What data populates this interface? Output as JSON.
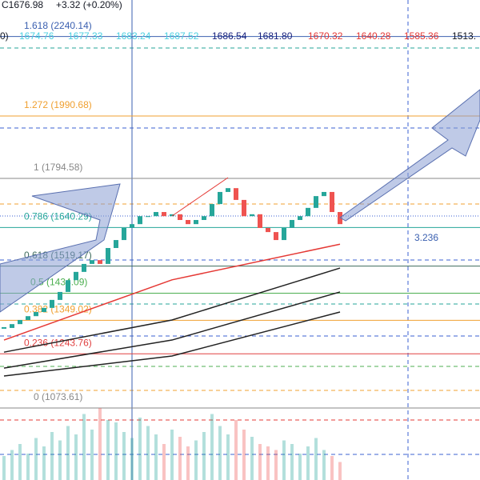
{
  "header": {
    "close": "C1676.98",
    "change": "+3.32 (+0.20%)"
  },
  "ma_values": [
    {
      "text": "0)",
      "color": "#131722"
    },
    {
      "text": "1674.76",
      "color": "#4dd0e1"
    },
    {
      "text": "1677.33",
      "color": "#4dd0e1"
    },
    {
      "text": "1683.24",
      "color": "#4dd0e1"
    },
    {
      "text": "1687.52",
      "color": "#4dd0e1"
    },
    {
      "text": "1686.54",
      "color": "#1a237e"
    },
    {
      "text": "1681.80",
      "color": "#1a237e"
    },
    {
      "text": "1670.32",
      "color": "#e53935"
    },
    {
      "text": "1640.28",
      "color": "#e53935"
    },
    {
      "text": "1585.36",
      "color": "#e53935"
    },
    {
      "text": "1513.",
      "color": "#131722"
    }
  ],
  "extension_label": "3.236",
  "chart_data": [
    {
      "type": "candlestick",
      "categories": [
        null,
        null,
        null,
        null,
        null,
        null,
        null,
        null,
        null,
        null,
        null,
        null,
        null,
        null,
        null,
        null,
        null,
        null,
        null,
        null,
        null,
        null,
        null,
        null,
        null,
        null,
        null,
        null,
        null,
        null,
        null,
        null,
        null,
        null,
        null,
        null,
        null,
        null,
        null,
        null,
        null,
        null,
        null
      ],
      "values": [
        1325,
        1337,
        1350,
        1362,
        1375,
        1388,
        1413,
        1438,
        1475,
        1501,
        1526,
        1538,
        1526,
        1576,
        1601,
        1639,
        1651,
        1676,
        1676,
        1689,
        1676,
        1682,
        1664,
        1651,
        1664,
        1676,
        1714,
        1752,
        1764,
        1727,
        1676,
        1682,
        1639,
        1626,
        1601,
        1639,
        1664,
        1676,
        1702,
        1739,
        1752,
        1689,
        1651
      ],
      "up_color": "#26a69a",
      "down_color": "#ef5350",
      "volume": [
        20,
        25,
        30,
        22,
        35,
        28,
        40,
        33,
        45,
        38,
        55,
        42,
        60,
        50,
        48,
        40,
        35,
        52,
        45,
        38,
        30,
        42,
        36,
        28,
        33,
        40,
        55,
        45,
        38,
        50,
        42,
        36,
        30,
        28,
        25,
        33,
        30,
        22,
        28,
        35,
        25,
        20,
        15
      ],
      "volume_lim": [
        0,
        100
      ],
      "xlim": [
        -0.5,
        59.5
      ],
      "ylim": [
        847.5,
        2354.8
      ],
      "fib_levels": [
        {
          "value": 2240.14,
          "label": "1.618 (2240.14)",
          "color": "#3b60b0"
        },
        {
          "value": 1990.68,
          "label": "1.272 (1990.68)",
          "color": "#f0a030"
        },
        {
          "value": 1794.58,
          "label": "1 (1794.58)",
          "color": "#888888"
        },
        {
          "value": 1640.29,
          "label": "0.786 (1640.29)",
          "color": "#26a69a"
        },
        {
          "value": 1519.17,
          "label": "0.618 (1519.17)",
          "color": "#3d6b5c"
        },
        {
          "value": 1434.09,
          "label": "0.5 (1434.09)",
          "color": "#4caf50"
        },
        {
          "value": 1349.02,
          "label": "0.382 (1349.02)",
          "color": "#f0a030"
        },
        {
          "value": 1243.76,
          "label": "0.236 (1243.76)",
          "color": "#e04040"
        },
        {
          "value": 1073.61,
          "label": "0 (1073.61)",
          "color": "#888888"
        }
      ]
    },
    {
      "type": "line",
      "x": [
        0,
        21,
        42
      ],
      "xlim": [
        -0.5,
        59.5
      ],
      "ylim": [
        847.5,
        2354.8
      ],
      "series": [
        {
          "color": "#e53935",
          "values": [
            1287,
            1476,
            1588
          ]
        },
        {
          "color": "#222222",
          "values": [
            1249,
            1350,
            1513
          ]
        },
        {
          "color": "#222222",
          "values": [
            1199,
            1287,
            1438
          ]
        },
        {
          "color": "#222222",
          "values": [
            1174,
            1237,
            1375
          ]
        }
      ]
    }
  ]
}
